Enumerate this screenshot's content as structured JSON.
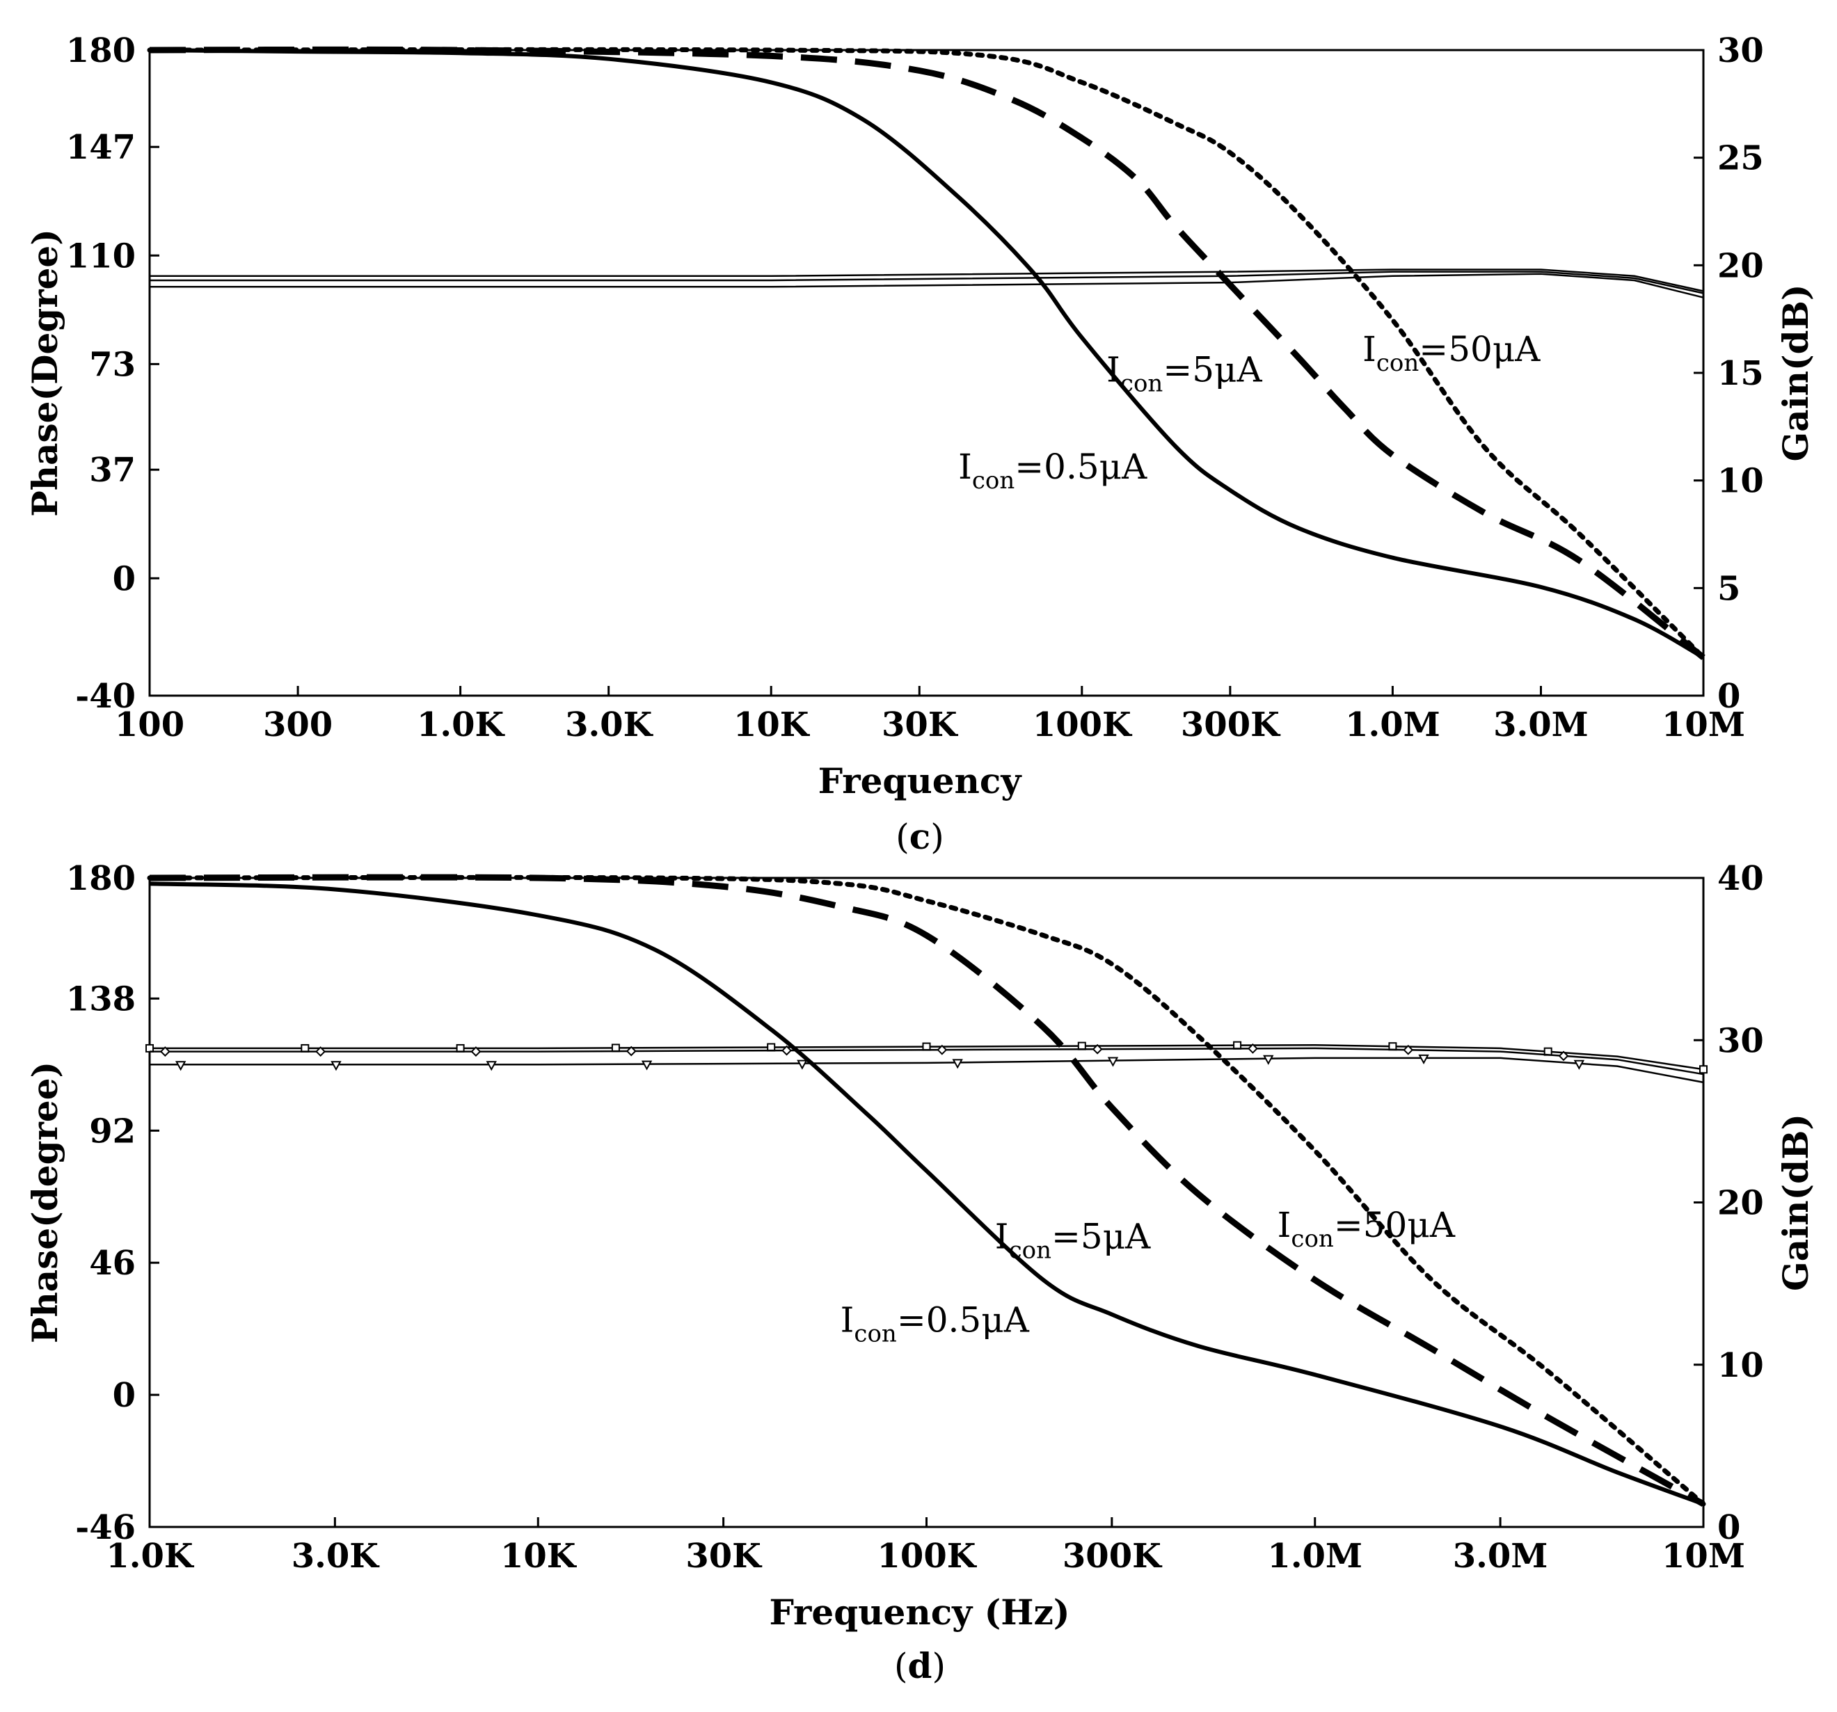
{
  "chart_data": [
    {
      "type": "line",
      "panel": "c",
      "caption_letter": "c",
      "xlabel": "Frequency",
      "x_scale": "log",
      "xlim": [
        100,
        10000000
      ],
      "x_ticks": [
        {
          "v": 100,
          "label": "100"
        },
        {
          "v": 300,
          "label": "300"
        },
        {
          "v": 1000,
          "label": "1.0K"
        },
        {
          "v": 3000,
          "label": "3.0K"
        },
        {
          "v": 10000,
          "label": "10K"
        },
        {
          "v": 30000,
          "label": "30K"
        },
        {
          "v": 100000,
          "label": "100K"
        },
        {
          "v": 300000,
          "label": "300K"
        },
        {
          "v": 1000000,
          "label": "1.0M"
        },
        {
          "v": 3000000,
          "label": "3.0M"
        },
        {
          "v": 10000000,
          "label": "10M"
        }
      ],
      "ylabel_left": "Phase(Degree)",
      "ylim_left": [
        -40,
        180
      ],
      "y_ticks_left": [
        180,
        147,
        110,
        73,
        37,
        0,
        -40
      ],
      "ylabel_right": "Gain(dB)",
      "ylim_right": [
        0,
        30
      ],
      "y_ticks_right": [
        30,
        25,
        20,
        15,
        10,
        5,
        0
      ],
      "phase_series": [
        {
          "name": "Icon=0.5μA",
          "style": "solid",
          "x": [
            100,
            300,
            1000,
            3000,
            10000,
            20000,
            40000,
            70000,
            100000,
            200000,
            300000,
            500000,
            1000000,
            3000000,
            6000000,
            10000000
          ],
          "y": [
            180,
            179.5,
            179,
            177,
            169,
            156,
            130,
            104,
            82,
            45,
            30,
            17,
            7,
            -3,
            -14,
            -27
          ]
        },
        {
          "name": "Icon=5μA",
          "style": "dashed",
          "x": [
            100,
            1000,
            10000,
            30000,
            60000,
            100000,
            150000,
            200000,
            300000,
            500000,
            700000,
            1000000,
            2000000,
            4000000,
            10000000
          ],
          "y": [
            180,
            180,
            178,
            173,
            163,
            150,
            136,
            120,
            100,
            75,
            58,
            42,
            22,
            6,
            -27
          ]
        },
        {
          "name": "Icon=50μA",
          "style": "dotted",
          "x": [
            100,
            10000,
            50000,
            100000,
            200000,
            300000,
            500000,
            1000000,
            2000000,
            4000000,
            10000000
          ],
          "y": [
            180,
            180,
            178,
            169,
            155,
            145,
            124,
            88,
            44,
            15,
            -27
          ]
        }
      ],
      "gain_series": [
        {
          "name": "Icon=50μA gain",
          "x": [
            100,
            10000,
            300000,
            1000000,
            3000000,
            6000000,
            10000000
          ],
          "y": [
            19.5,
            19.5,
            19.7,
            19.8,
            19.8,
            19.5,
            18.8
          ]
        },
        {
          "name": "Icon=5μA gain",
          "x": [
            100,
            10000,
            300000,
            1000000,
            3000000,
            6000000,
            10000000
          ],
          "y": [
            19.3,
            19.3,
            19.5,
            19.7,
            19.7,
            19.4,
            18.7
          ]
        },
        {
          "name": "Icon=0.5μA gain",
          "x": [
            100,
            10000,
            300000,
            1000000,
            3000000,
            6000000,
            10000000
          ],
          "y": [
            19.0,
            19.0,
            19.2,
            19.5,
            19.6,
            19.3,
            18.5
          ]
        }
      ],
      "annotations": [
        {
          "main": "I",
          "sub": "con",
          "rest": "=5μA",
          "at_x": 120000,
          "at_y": 67
        },
        {
          "main": "I",
          "sub": "con",
          "rest": "=50μA",
          "at_x": 800000,
          "at_y": 74
        },
        {
          "main": "I",
          "sub": "con",
          "rest": "=0.5μA",
          "at_x": 40000,
          "at_y": 34
        }
      ]
    },
    {
      "type": "line",
      "panel": "d",
      "caption_letter": "d",
      "xlabel": "Frequency (Hz)",
      "x_scale": "log",
      "xlim": [
        1000,
        10000000
      ],
      "x_ticks": [
        {
          "v": 1000,
          "label": "1.0K"
        },
        {
          "v": 3000,
          "label": "3.0K"
        },
        {
          "v": 10000,
          "label": "10K"
        },
        {
          "v": 30000,
          "label": "30K"
        },
        {
          "v": 100000,
          "label": "100K"
        },
        {
          "v": 300000,
          "label": "300K"
        },
        {
          "v": 1000000,
          "label": "1.0M"
        },
        {
          "v": 3000000,
          "label": "3.0M"
        },
        {
          "v": 10000000,
          "label": "10M"
        }
      ],
      "ylabel_left": "Phase(degree)",
      "ylim_left": [
        -46,
        180
      ],
      "y_ticks_left": [
        180,
        138,
        92,
        46,
        0,
        -46
      ],
      "ylabel_right": "Gain(dB)",
      "ylim_right": [
        0,
        40
      ],
      "y_ticks_right": [
        40,
        30,
        20,
        10,
        0
      ],
      "phase_series": [
        {
          "name": "Icon=0.5μA",
          "style": "solid",
          "x": [
            1000,
            3000,
            10000,
            20000,
            40000,
            70000,
            100000,
            200000,
            300000,
            500000,
            1000000,
            3000000,
            6000000,
            10000000
          ],
          "y": [
            178,
            176,
            167,
            155,
            127,
            98,
            78,
            40,
            28,
            17,
            7,
            -11,
            -27,
            -38
          ]
        },
        {
          "name": "Icon=5μA",
          "style": "dashed",
          "x": [
            1000,
            10000,
            30000,
            60000,
            100000,
            200000,
            300000,
            500000,
            1000000,
            2000000,
            4000000,
            10000000
          ],
          "y": [
            180,
            180,
            177,
            170,
            160,
            128,
            100,
            70,
            40,
            16,
            -8,
            -38
          ]
        },
        {
          "name": "Icon=50μA",
          "style": "dotted",
          "x": [
            1000,
            20000,
            60000,
            100000,
            200000,
            300000,
            500000,
            1000000,
            2000000,
            4000000,
            10000000
          ],
          "y": [
            180,
            180,
            178,
            172,
            160,
            150,
            125,
            85,
            40,
            8,
            -38
          ]
        }
      ],
      "gain_series": [
        {
          "name": "Icon=50μA gain",
          "marker": "square",
          "x": [
            1000,
            10000,
            100000,
            1000000,
            3000000,
            6000000,
            10000000
          ],
          "y": [
            29.5,
            29.5,
            29.6,
            29.7,
            29.5,
            29.0,
            28.2
          ]
        },
        {
          "name": "Icon=5μA gain",
          "marker": "diamond",
          "x": [
            1000,
            10000,
            100000,
            1000000,
            3000000,
            6000000,
            10000000
          ],
          "y": [
            29.3,
            29.3,
            29.4,
            29.5,
            29.3,
            28.8,
            27.9
          ]
        },
        {
          "name": "Icon=0.5μA gain",
          "marker": "triangle",
          "x": [
            1000,
            10000,
            100000,
            1000000,
            3000000,
            6000000,
            10000000
          ],
          "y": [
            28.5,
            28.5,
            28.6,
            28.9,
            28.9,
            28.4,
            27.4
          ]
        }
      ],
      "annotations": [
        {
          "main": "I",
          "sub": "con",
          "rest": "=5μA",
          "at_x": 150000,
          "at_y": 51
        },
        {
          "main": "I",
          "sub": "con",
          "rest": "=50μA",
          "at_x": 800000,
          "at_y": 55
        },
        {
          "main": "I",
          "sub": "con",
          "rest": "=0.5μA",
          "at_x": 60000,
          "at_y": 22
        }
      ]
    }
  ]
}
